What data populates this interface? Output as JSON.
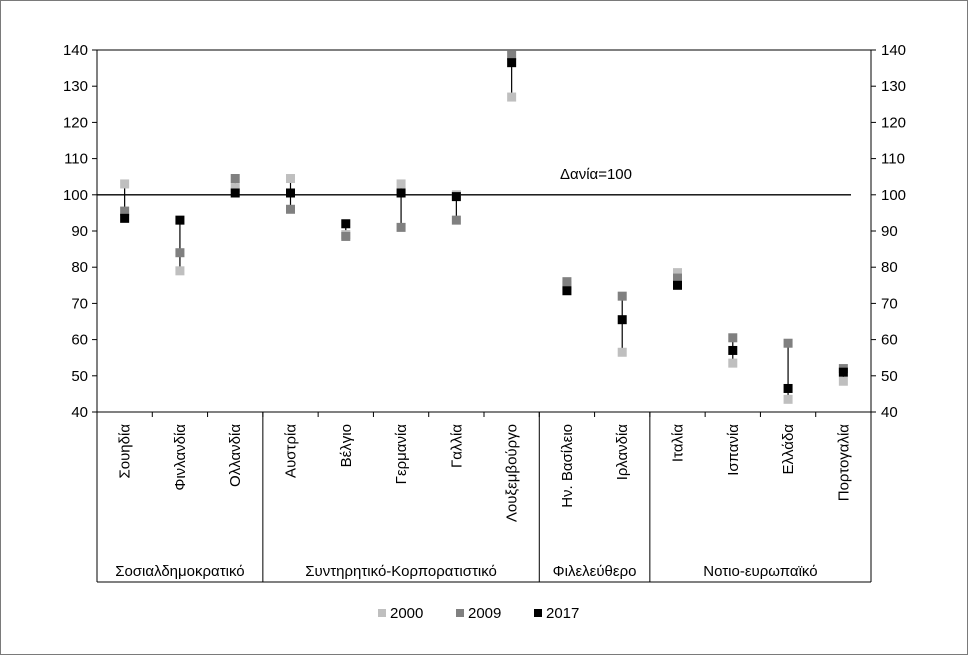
{
  "chart_data": {
    "type": "scatter",
    "title": "",
    "xlabel": "",
    "ylabel": "",
    "ylim": [
      40,
      140
    ],
    "yticks": [
      40,
      50,
      60,
      70,
      80,
      90,
      100,
      110,
      120,
      130,
      140
    ],
    "grid": false,
    "legend_position": "bottom",
    "categories": [
      "Σουηδία",
      "Φινλανδία",
      "Ολλανδία",
      "Αυστρία",
      "Βέλγιο",
      "Γερμανία",
      "Γαλλία",
      "Λουξεμβούργο",
      "Ην. Βασίλειο",
      "Ιρλανδία",
      "Ιταλία",
      "Ισπανία",
      "Ελλάδα",
      "Πορτογαλία"
    ],
    "groups": [
      {
        "label": "Σοσιαλδημοκρατικό",
        "start": 0,
        "end": 2
      },
      {
        "label": "Συντηρητικό-Κορπορατιστικό",
        "start": 3,
        "end": 7
      },
      {
        "label": "Φιλελεύθερο",
        "start": 8,
        "end": 9
      },
      {
        "label": "Νοτιο-ευρωπαϊκό",
        "start": 10,
        "end": 13
      }
    ],
    "series": [
      {
        "name": "2000",
        "color": "#bfbfbf",
        "values": [
          103,
          79,
          102,
          104.5,
          89,
          103,
          100,
          127,
          75,
          56.5,
          78.5,
          53.5,
          43.5,
          48.5
        ]
      },
      {
        "name": "2009",
        "color": "#808080",
        "values": [
          95.5,
          84,
          104.5,
          96,
          88.5,
          91,
          93,
          138.5,
          76,
          72,
          77,
          60.5,
          59,
          52
        ]
      },
      {
        "name": "2017",
        "color": "#000000",
        "values": [
          93.5,
          93,
          100.5,
          100.5,
          92,
          100.5,
          99.5,
          136.5,
          73.5,
          65.5,
          75,
          57,
          46.5,
          51
        ]
      }
    ],
    "reference_line": {
      "value": 100,
      "label": "Δανία=100"
    }
  }
}
